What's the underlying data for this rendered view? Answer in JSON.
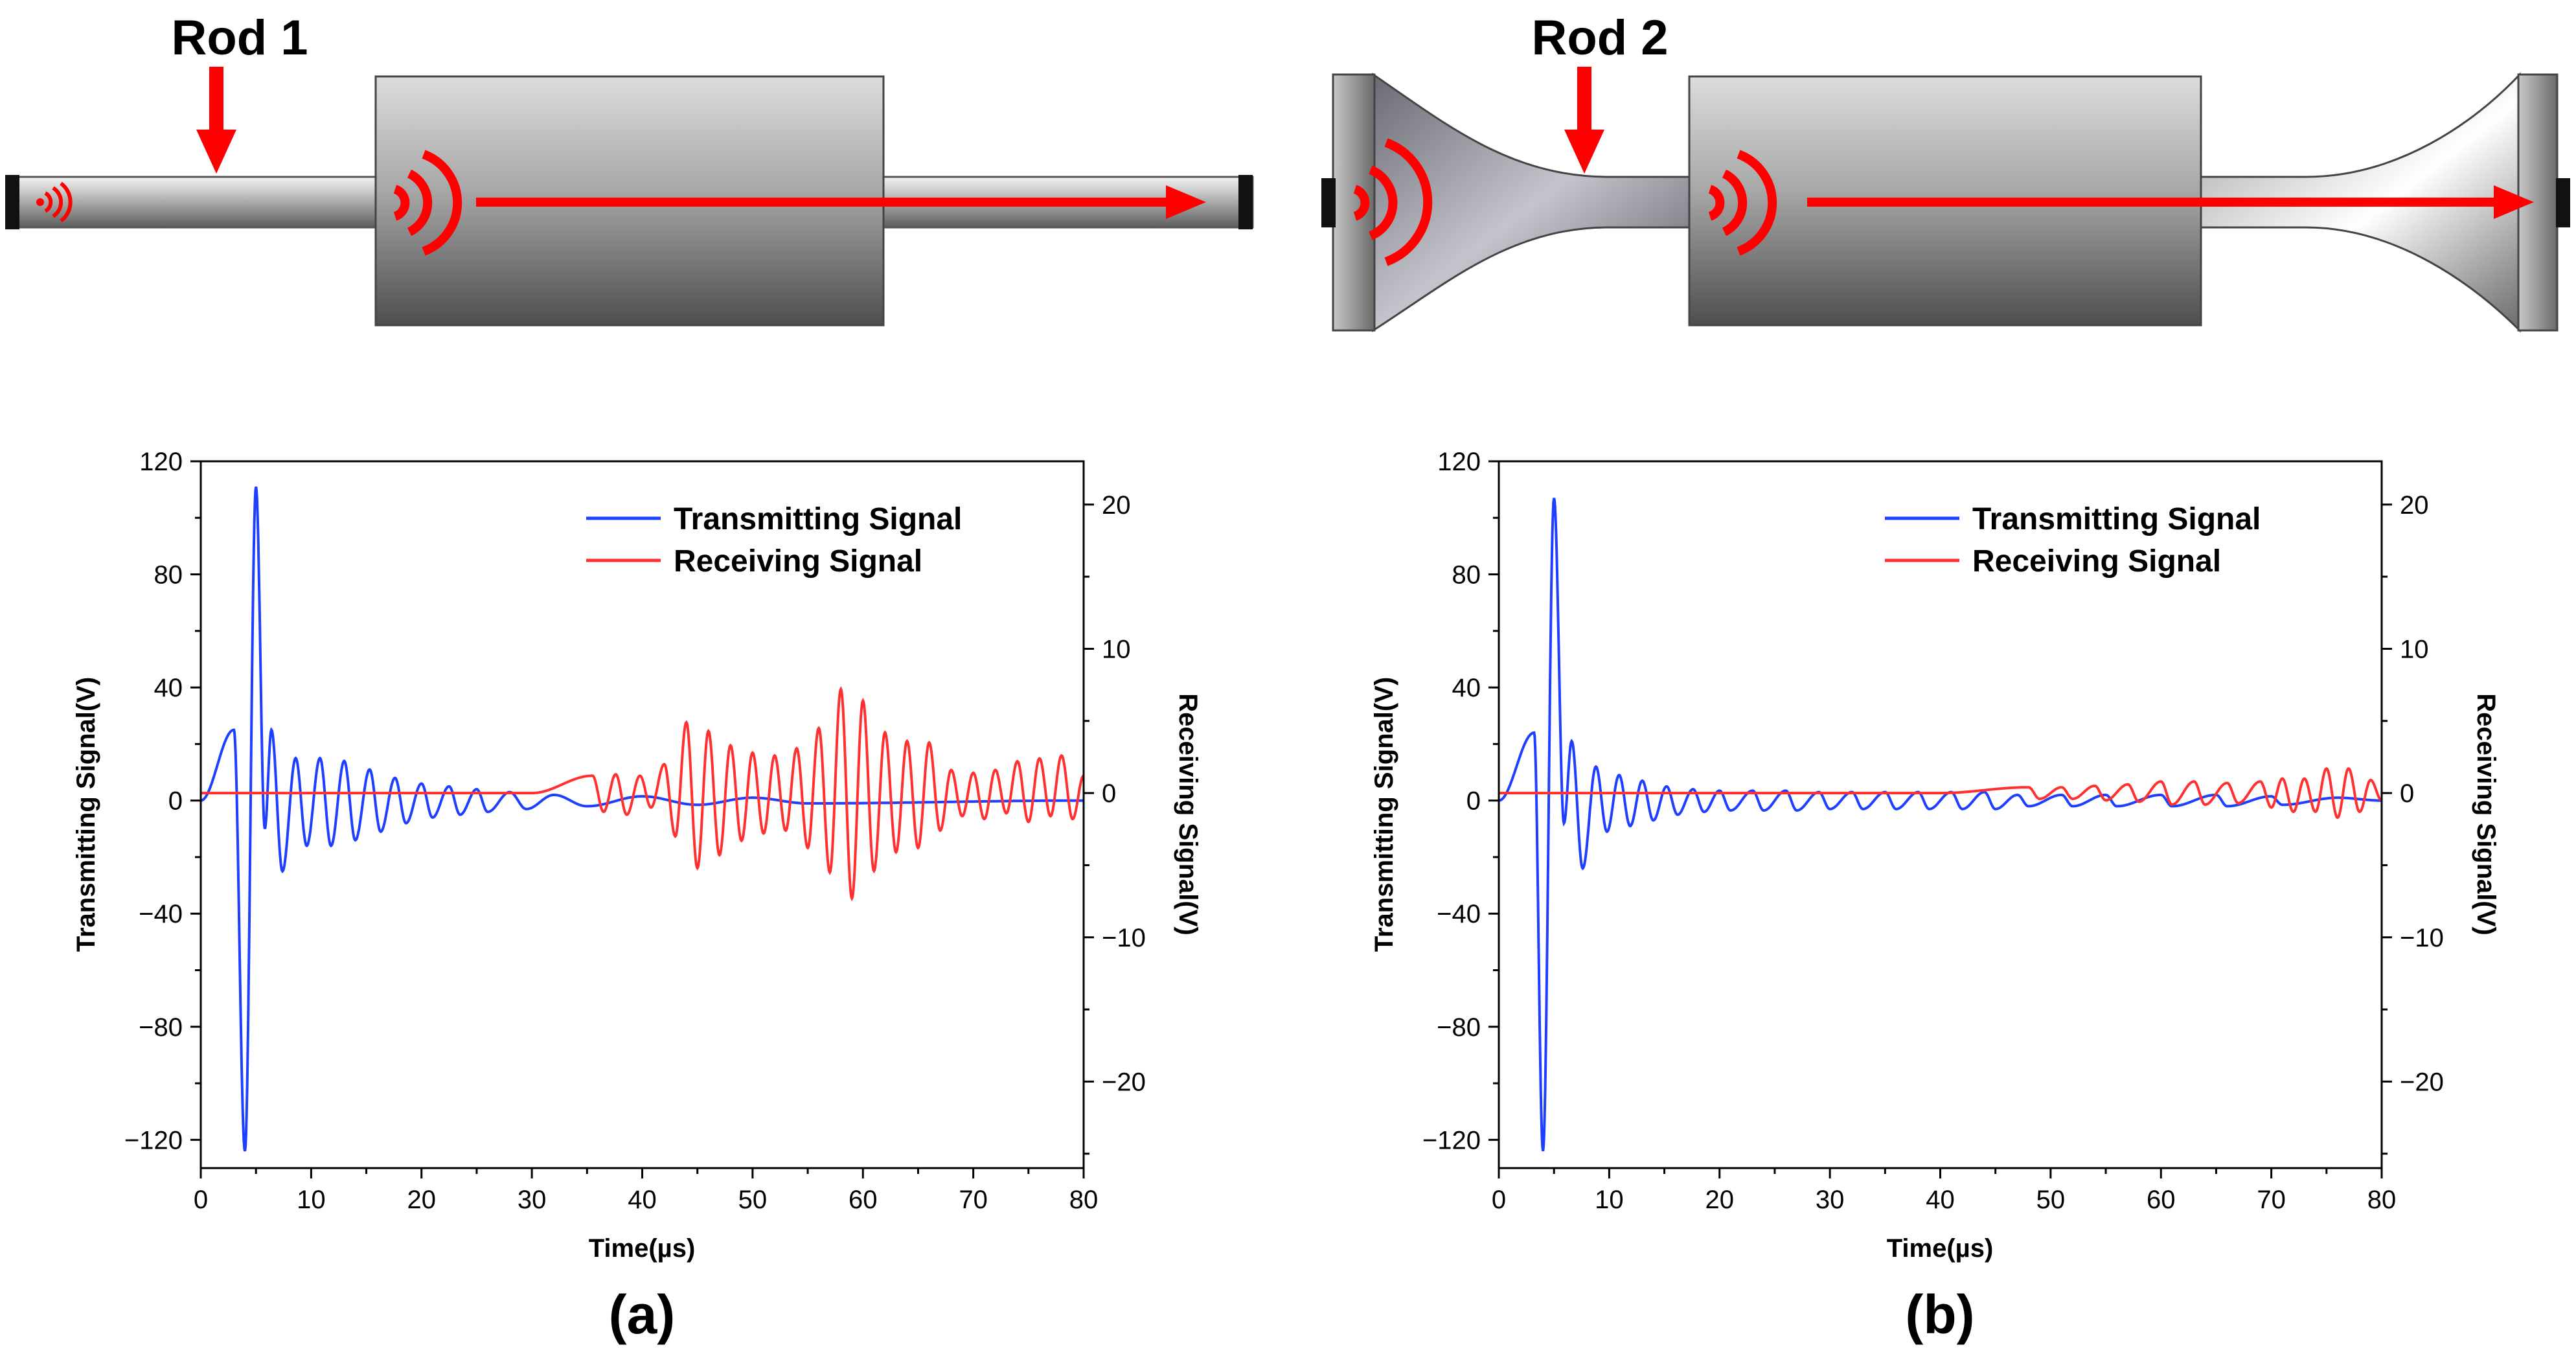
{
  "colors": {
    "transmit": "#1f3fff",
    "receive": "#ff3030",
    "arrow": "#ff0000"
  },
  "rods": [
    {
      "label": "Rod 1",
      "shape": "straight"
    },
    {
      "label": "Rod 2",
      "shape": "flared"
    }
  ],
  "chart_data": [
    {
      "type": "line",
      "panel_label": "(a)",
      "xlabel": "Time(µs)",
      "ylabel_left": "Transmitting Signal(V)",
      "ylabel_right": "Receiving Signal(V)",
      "xlim": [
        0,
        80
      ],
      "ylim_left": [
        -130,
        120
      ],
      "ylim_right": [
        -26,
        23
      ],
      "xticks": [
        "0",
        "10",
        "20",
        "30",
        "40",
        "50",
        "60",
        "70",
        "80"
      ],
      "yticks_left": [
        "120",
        "80",
        "40",
        "0",
        "−40",
        "−80",
        "−120"
      ],
      "yticks_right": [
        "20",
        "10",
        "0",
        "−10",
        "−20"
      ],
      "legend": [
        "Transmitting Signal",
        "Receiving Signal"
      ],
      "legend_position": "top-right",
      "series": [
        {
          "name": "Transmitting Signal",
          "axis": "left",
          "peak_points": [
            [
              3.0,
              25
            ],
            [
              4.0,
              -124
            ],
            [
              5.0,
              111
            ],
            [
              5.8,
              -10
            ],
            [
              6.4,
              25
            ],
            [
              7.4,
              -25
            ],
            [
              8.6,
              15
            ],
            [
              9.6,
              -16
            ],
            [
              10.8,
              15
            ],
            [
              11.8,
              -16
            ],
            [
              13.0,
              14
            ],
            [
              14.0,
              -14
            ],
            [
              15.3,
              11
            ],
            [
              16.3,
              -11
            ],
            [
              17.6,
              8
            ],
            [
              18.6,
              -8
            ],
            [
              20.0,
              6
            ],
            [
              21.0,
              -6
            ],
            [
              22.5,
              5
            ],
            [
              23.5,
              -5
            ],
            [
              25.0,
              4
            ],
            [
              26.0,
              -4
            ],
            [
              28.0,
              3
            ],
            [
              29.5,
              -3
            ],
            [
              32.0,
              2
            ],
            [
              35.0,
              -2
            ],
            [
              40.0,
              1.5
            ],
            [
              45.0,
              -1.5
            ],
            [
              50.0,
              1
            ],
            [
              55.0,
              -1
            ],
            [
              80.0,
              0
            ]
          ]
        },
        {
          "name": "Receiving Signal",
          "axis": "right",
          "peak_points": [
            [
              30.0,
              0
            ],
            [
              35.5,
              1.2
            ],
            [
              36.5,
              -1.3
            ],
            [
              37.6,
              1.3
            ],
            [
              38.6,
              -1.5
            ],
            [
              39.8,
              1.2
            ],
            [
              40.8,
              -1.0
            ],
            [
              42.0,
              2.0
            ],
            [
              43.0,
              -3.0
            ],
            [
              44.0,
              4.9
            ],
            [
              45.0,
              -5.2
            ],
            [
              46.0,
              4.3
            ],
            [
              47.0,
              -4.3
            ],
            [
              48.0,
              3.3
            ],
            [
              49.0,
              -3.3
            ],
            [
              50.0,
              2.8
            ],
            [
              51.0,
              -2.8
            ],
            [
              52.0,
              2.6
            ],
            [
              53.0,
              -2.6
            ],
            [
              54.0,
              3.1
            ],
            [
              55.0,
              -3.8
            ],
            [
              56.0,
              4.5
            ],
            [
              57.0,
              -5.5
            ],
            [
              58.0,
              7.2
            ],
            [
              59.0,
              -7.3
            ],
            [
              60.0,
              6.4
            ],
            [
              61.0,
              -5.4
            ],
            [
              62.0,
              4.2
            ],
            [
              63.0,
              -4.1
            ],
            [
              64.0,
              3.6
            ],
            [
              65.0,
              -3.8
            ],
            [
              66.0,
              3.5
            ],
            [
              67.0,
              -2.6
            ],
            [
              68.0,
              1.6
            ],
            [
              69.0,
              -1.6
            ],
            [
              70.0,
              1.4
            ],
            [
              71.0,
              -1.8
            ],
            [
              72.0,
              1.6
            ],
            [
              73.0,
              -1.4
            ],
            [
              74.0,
              2.2
            ],
            [
              75.0,
              -2.0
            ],
            [
              76.0,
              2.4
            ],
            [
              77.0,
              -1.6
            ],
            [
              78.0,
              2.6
            ],
            [
              79.0,
              -1.8
            ],
            [
              80.0,
              1.2
            ]
          ]
        }
      ]
    },
    {
      "type": "line",
      "panel_label": "(b)",
      "xlabel": "Time(µs)",
      "ylabel_left": "Transmitting Signal(V)",
      "ylabel_right": "Receiving Signal(V)",
      "xlim": [
        0,
        80
      ],
      "ylim_left": [
        -130,
        120
      ],
      "ylim_right": [
        -26,
        23
      ],
      "xticks": [
        "0",
        "10",
        "20",
        "30",
        "40",
        "50",
        "60",
        "70",
        "80"
      ],
      "yticks_left": [
        "120",
        "80",
        "40",
        "0",
        "−40",
        "−80",
        "−120"
      ],
      "yticks_right": [
        "20",
        "10",
        "0",
        "−10",
        "−20"
      ],
      "legend": [
        "Transmitting Signal",
        "Receiving Signal"
      ],
      "legend_position": "top-right",
      "series": [
        {
          "name": "Transmitting Signal",
          "axis": "left",
          "peak_points": [
            [
              3.2,
              24
            ],
            [
              4.0,
              -124
            ],
            [
              5.0,
              107
            ],
            [
              5.9,
              -8
            ],
            [
              6.6,
              21
            ],
            [
              7.6,
              -24
            ],
            [
              8.8,
              12
            ],
            [
              9.8,
              -11
            ],
            [
              10.9,
              9
            ],
            [
              11.9,
              -9
            ],
            [
              13.0,
              7
            ],
            [
              14.0,
              -7
            ],
            [
              15.2,
              5
            ],
            [
              16.2,
              -5
            ],
            [
              17.6,
              4
            ],
            [
              18.6,
              -4
            ],
            [
              20.0,
              3.5
            ],
            [
              21.0,
              -3.5
            ],
            [
              23.0,
              3.5
            ],
            [
              24.0,
              -3.5
            ],
            [
              26.0,
              3.5
            ],
            [
              27.0,
              -3.5
            ],
            [
              29.0,
              3
            ],
            [
              30.0,
              -3
            ],
            [
              32.0,
              3
            ],
            [
              33.0,
              -3
            ],
            [
              35.0,
              3
            ],
            [
              36.0,
              -3
            ],
            [
              38.0,
              3
            ],
            [
              39.0,
              -3
            ],
            [
              41.0,
              3
            ],
            [
              42.0,
              -3
            ],
            [
              44.0,
              3
            ],
            [
              45.0,
              -3
            ],
            [
              47.0,
              2
            ],
            [
              48.0,
              -2
            ],
            [
              51.0,
              2
            ],
            [
              52.0,
              -2
            ],
            [
              55.0,
              2
            ],
            [
              56.0,
              -2
            ],
            [
              60.0,
              2
            ],
            [
              61.0,
              -2
            ],
            [
              65.0,
              2
            ],
            [
              66.0,
              -2
            ],
            [
              70.0,
              1.5
            ],
            [
              71.0,
              -1.5
            ],
            [
              76.0,
              1
            ],
            [
              80.0,
              0
            ]
          ]
        },
        {
          "name": "Receiving Signal",
          "axis": "right",
          "peak_points": [
            [
              40.0,
              0
            ],
            [
              48.0,
              0.4
            ],
            [
              49.0,
              -0.4
            ],
            [
              51.0,
              0.4
            ],
            [
              52.0,
              -0.4
            ],
            [
              54.0,
              0.5
            ],
            [
              55.0,
              -0.5
            ],
            [
              57.0,
              0.6
            ],
            [
              58.0,
              -0.6
            ],
            [
              60.0,
              0.8
            ],
            [
              61.0,
              -0.8
            ],
            [
              63.0,
              0.8
            ],
            [
              64.0,
              -0.8
            ],
            [
              66.0,
              0.7
            ],
            [
              67.0,
              -0.7
            ],
            [
              69.0,
              0.8
            ],
            [
              70.0,
              -1.0
            ],
            [
              71.0,
              1.0
            ],
            [
              72.0,
              -1.3
            ],
            [
              73.0,
              1.0
            ],
            [
              74.0,
              -1.3
            ],
            [
              75.0,
              1.7
            ],
            [
              76.0,
              -1.7
            ],
            [
              77.0,
              1.7
            ],
            [
              78.0,
              -1.3
            ],
            [
              79.0,
              0.9
            ],
            [
              80.0,
              -0.5
            ]
          ]
        }
      ]
    }
  ]
}
